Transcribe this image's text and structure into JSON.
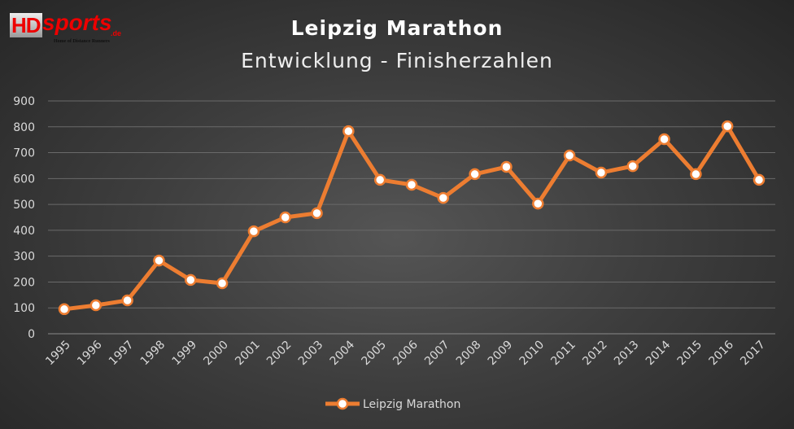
{
  "logo": {
    "text_hd": "HD",
    "text_sports": "sports",
    "text_de": ".de",
    "tagline": "Home of Distance Runners"
  },
  "chart_data": {
    "type": "line",
    "title": "Leipzig Marathon",
    "subtitle": "Entwicklung - Finisherzahlen",
    "categories": [
      "1995",
      "1996",
      "1997",
      "1998",
      "1999",
      "2000",
      "2001",
      "2002",
      "2003",
      "2004",
      "2005",
      "2006",
      "2007",
      "2008",
      "2009",
      "2010",
      "2011",
      "2012",
      "2013",
      "2014",
      "2015",
      "2016",
      "2017"
    ],
    "series": [
      {
        "name": "Leipzig Marathon",
        "color": "#ed7d31",
        "values": [
          95,
          110,
          129,
          283,
          208,
          195,
          396,
          450,
          466,
          783,
          595,
          576,
          525,
          617,
          645,
          503,
          689,
          623,
          648,
          752,
          617,
          802,
          595
        ]
      }
    ],
    "ylim": [
      0,
      900
    ],
    "yticks": [
      0,
      100,
      200,
      300,
      400,
      500,
      600,
      700,
      800,
      900
    ],
    "grid": true,
    "legend": "bottom"
  }
}
